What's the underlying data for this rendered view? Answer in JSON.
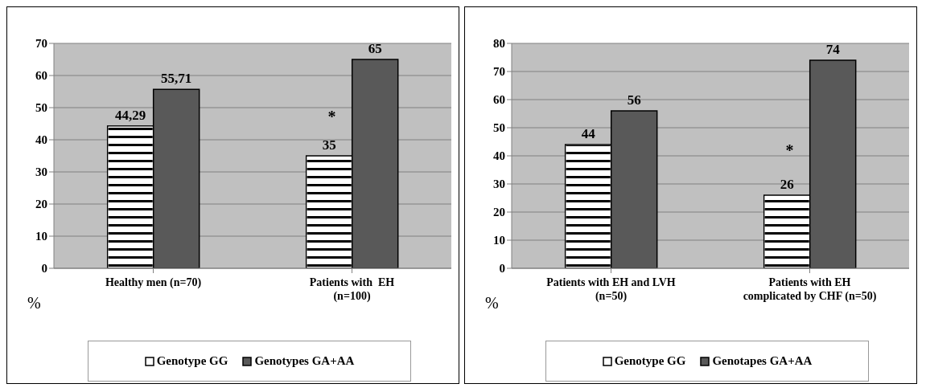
{
  "chart_data": [
    {
      "type": "bar",
      "categories": [
        "Healthy men (n=70)",
        "Patients with  EH (n=100)"
      ],
      "series": [
        {
          "name": "Genotype GG",
          "color": "#ffffff",
          "values": [
            44.29,
            35
          ],
          "value_labels": [
            "44,29",
            "35"
          ]
        },
        {
          "name": "Genotypes GA+AA",
          "color": "#595959",
          "values": [
            55.71,
            65
          ],
          "value_labels": [
            "55,71",
            "65"
          ]
        }
      ],
      "ylabel": "%",
      "ylim": [
        0,
        70
      ],
      "yticks": [
        0,
        10,
        20,
        30,
        40,
        50,
        60,
        70
      ],
      "grid": "y",
      "legend": "bottom",
      "annotations": [
        {
          "text": "*",
          "x": "Patients with  EH (n=100)",
          "y": 48
        }
      ]
    },
    {
      "type": "bar",
      "categories": [
        "Patients with EH and LVH (n=50)",
        "Patients with EH complicated by CHF (n=50)"
      ],
      "series": [
        {
          "name": "Genotype GG",
          "color": "#ffffff",
          "values": [
            44,
            26
          ]
        },
        {
          "name": "Genotapes GA+AA",
          "color": "#595959",
          "values": [
            56,
            74
          ]
        }
      ],
      "data_labels": true,
      "ylabel": "%",
      "ylim": [
        0,
        80
      ],
      "yticks": [
        0,
        10,
        20,
        30,
        40,
        50,
        60,
        70,
        80
      ],
      "grid": "y",
      "legend": "bottom",
      "annotations": [
        {
          "text": "*",
          "x": "Patients with EH complicated by CHF (n=50)",
          "y": 43
        }
      ]
    }
  ]
}
